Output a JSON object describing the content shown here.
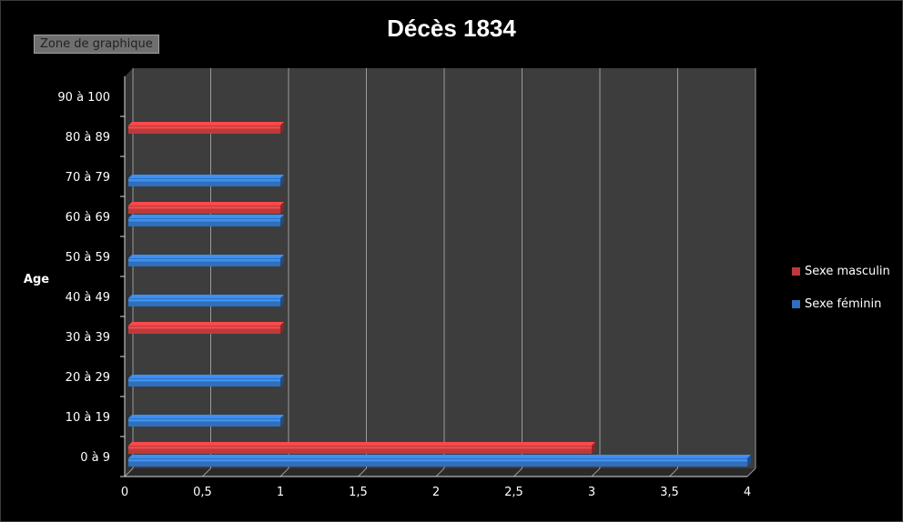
{
  "ui": {
    "chart_area_label": "Zone de graphique"
  },
  "chart_data": {
    "type": "bar",
    "orientation": "horizontal",
    "title": "Décès 1834",
    "ylabel": "Age",
    "xlabel": "",
    "categories": [
      "0 à 9",
      "10 à 19",
      "20 à 29",
      "30 à 39",
      "40 à 49",
      "50 à 59",
      "60 à 69",
      "70 à 79",
      "80 à 89",
      "90 à 100"
    ],
    "series": [
      {
        "name": "Sexe masculin",
        "color": "#c0393a",
        "values": [
          3,
          0,
          0,
          1,
          0,
          0,
          1,
          0,
          1,
          0
        ]
      },
      {
        "name": "Sexe féminin",
        "color": "#2f6fbd",
        "values": [
          4,
          1,
          1,
          0,
          1,
          1,
          1,
          1,
          0,
          0
        ]
      }
    ],
    "xlim": [
      0,
      4
    ],
    "xticks": [
      "0",
      "0,5",
      "1",
      "1,5",
      "2",
      "2,5",
      "3",
      "3,5",
      "4"
    ],
    "grid": true,
    "legend_position": "right",
    "background": "#3d3d3d"
  }
}
